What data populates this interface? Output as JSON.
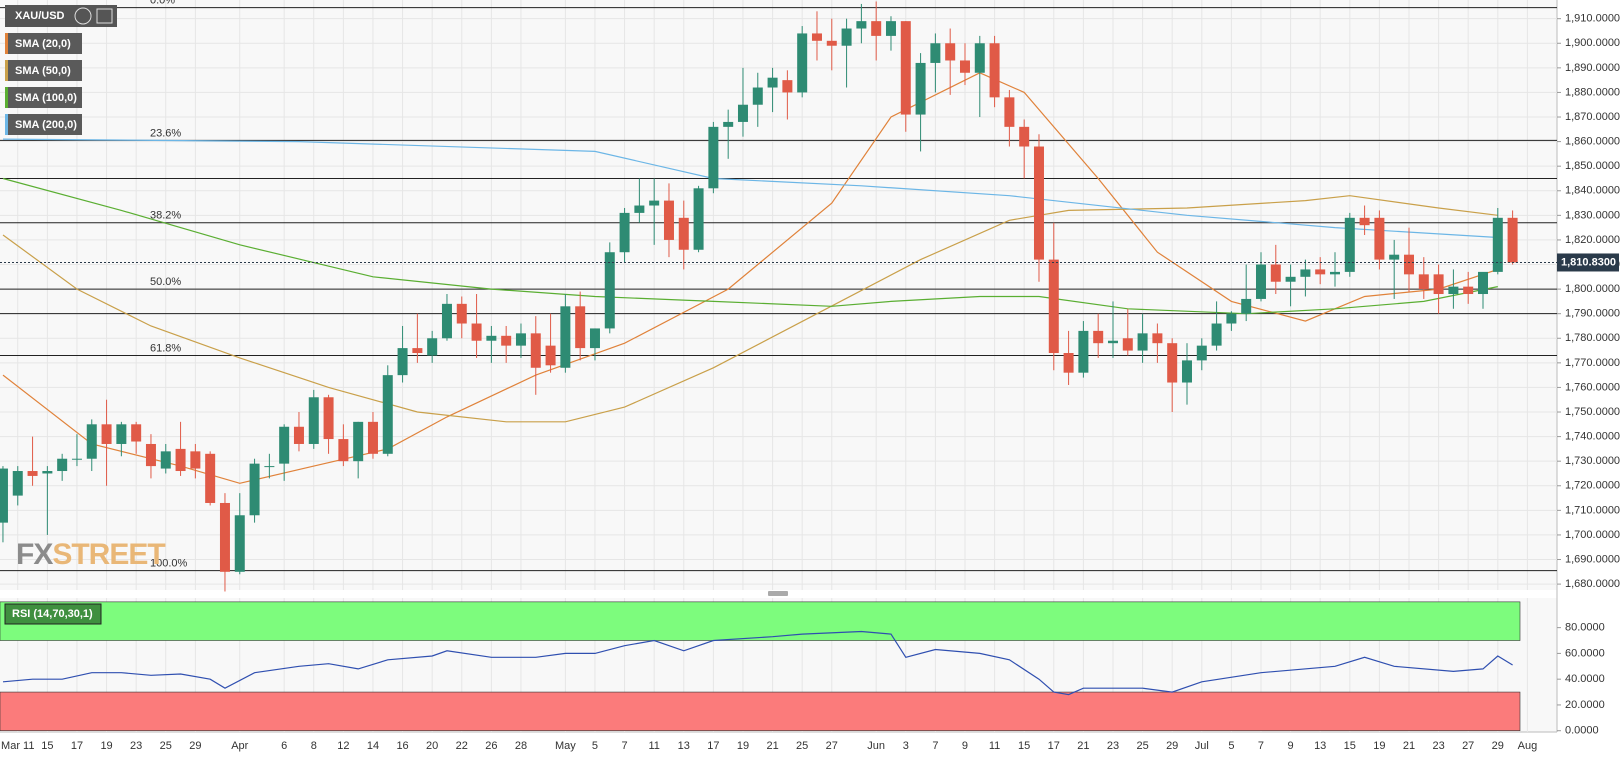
{
  "chart_data": [
    {
      "type": "candlestick",
      "symbol": "XAU/USD",
      "up_color": "#2e8b73",
      "down_color": "#e05a47",
      "open": [
        1705,
        1716,
        1726,
        1725,
        1726,
        1731,
        1731,
        1745,
        1737,
        1745,
        1737,
        1727,
        1735,
        1734,
        1733,
        1713,
        1685,
        1708,
        1728,
        1729,
        1744,
        1737,
        1756,
        1739,
        1730,
        1746,
        1733,
        1765,
        1776,
        1773,
        1780,
        1794,
        1786,
        1779,
        1781,
        1777,
        1782,
        1777,
        1768,
        1793,
        1776,
        1784,
        1815,
        1831,
        1834,
        1836,
        1829,
        1816,
        1841,
        1866,
        1868,
        1875,
        1882,
        1885,
        1880,
        1904,
        1901,
        1899,
        1906,
        1909,
        1903,
        1909,
        1871,
        1892,
        1900,
        1893,
        1888,
        1900,
        1878,
        1866,
        1858,
        1812,
        1774,
        1766,
        1783,
        1778,
        1780,
        1775,
        1782,
        1778,
        1762,
        1771,
        1777,
        1786,
        1790,
        1796,
        1810,
        1803,
        1805,
        1808,
        1806,
        1807,
        1829,
        1829,
        1812,
        1814,
        1806,
        1806,
        1798,
        1801,
        1798,
        1807,
        1829
      ],
      "high": [
        1728,
        1728,
        1740,
        1728,
        1733,
        1741,
        1747,
        1755,
        1746,
        1746,
        1741,
        1737,
        1746,
        1737,
        1734,
        1717,
        1717,
        1731,
        1733,
        1745,
        1750,
        1759,
        1757,
        1745,
        1746,
        1750,
        1769,
        1785,
        1790,
        1783,
        1798,
        1797,
        1798,
        1785,
        1785,
        1786,
        1789,
        1790,
        1798,
        1799,
        1784,
        1819,
        1833,
        1845,
        1845,
        1843,
        1836,
        1842,
        1868,
        1873,
        1890,
        1888,
        1890,
        1889,
        1907,
        1913,
        1910,
        1910,
        1916,
        1917,
        1911,
        1909,
        1896,
        1904,
        1906,
        1900,
        1903,
        1903,
        1881,
        1869,
        1863,
        1827,
        1783,
        1787,
        1790,
        1795,
        1792,
        1790,
        1786,
        1780,
        1778,
        1780,
        1795,
        1791,
        1810,
        1815,
        1818,
        1810,
        1812,
        1813,
        1815,
        1831,
        1834,
        1832,
        1820,
        1825,
        1813,
        1810,
        1808,
        1807,
        1805,
        1833,
        1832
      ],
      "low": [
        1697,
        1712,
        1720,
        1700,
        1722,
        1728,
        1726,
        1720,
        1732,
        1733,
        1723,
        1725,
        1724,
        1723,
        1712,
        1677,
        1684,
        1705,
        1723,
        1722,
        1734,
        1735,
        1733,
        1728,
        1723,
        1731,
        1732,
        1762,
        1770,
        1770,
        1779,
        1780,
        1772,
        1770,
        1770,
        1772,
        1757,
        1766,
        1766,
        1771,
        1771,
        1782,
        1811,
        1827,
        1818,
        1813,
        1808,
        1815,
        1839,
        1853,
        1862,
        1866,
        1872,
        1869,
        1878,
        1893,
        1889,
        1882,
        1900,
        1893,
        1897,
        1864,
        1856,
        1880,
        1879,
        1883,
        1870,
        1874,
        1858,
        1845,
        1803,
        1767,
        1761,
        1764,
        1772,
        1772,
        1773,
        1770,
        1770,
        1750,
        1753,
        1767,
        1775,
        1783,
        1787,
        1795,
        1798,
        1793,
        1797,
        1802,
        1801,
        1805,
        1822,
        1808,
        1796,
        1799,
        1796,
        1790,
        1792,
        1794,
        1792,
        1806,
        1810
      ],
      "close": [
        1727,
        1726,
        1724,
        1726,
        1731,
        1731,
        1745,
        1737,
        1745,
        1738,
        1728,
        1734,
        1726,
        1727,
        1713,
        1685,
        1708,
        1729,
        1728,
        1744,
        1737,
        1756,
        1739,
        1730,
        1746,
        1733,
        1765,
        1776,
        1774,
        1780,
        1794,
        1786,
        1779,
        1781,
        1777,
        1782,
        1768,
        1769,
        1793,
        1776,
        1784,
        1815,
        1831,
        1834,
        1836,
        1820,
        1816,
        1841,
        1866,
        1868,
        1875,
        1882,
        1886,
        1880,
        1904,
        1901,
        1899,
        1906,
        1909,
        1903,
        1909,
        1871,
        1892,
        1900,
        1893,
        1888,
        1900,
        1878,
        1866,
        1858,
        1812,
        1774,
        1766,
        1783,
        1778,
        1779,
        1775,
        1782,
        1778,
        1762,
        1771,
        1777,
        1786,
        1790,
        1796,
        1810,
        1803,
        1805,
        1808,
        1806,
        1807,
        1829,
        1826,
        1812,
        1814,
        1806,
        1800,
        1798,
        1801,
        1798,
        1807,
        1829,
        1810.83
      ],
      "series": [
        {
          "name": "SMA (20,0)",
          "color": "#e0823a",
          "x": [
            0,
            6,
            12,
            16,
            21,
            26,
            30,
            36,
            42,
            49,
            56,
            60,
            66,
            69,
            74,
            78,
            83,
            88,
            92,
            97,
            101
          ],
          "values": [
            1765,
            1737,
            1728,
            1721,
            1728,
            1735,
            1748,
            1765,
            1778,
            1800,
            1835,
            1870,
            1888,
            1880,
            1845,
            1815,
            1795,
            1787,
            1797,
            1800,
            1808
          ]
        },
        {
          "name": "SMA (50,0)",
          "color": "#c9a04a",
          "x": [
            0,
            5,
            10,
            16,
            22,
            28,
            34,
            38,
            42,
            48,
            55,
            62,
            68,
            72,
            80,
            88,
            91,
            97,
            101
          ],
          "values": [
            1822,
            1800,
            1785,
            1772,
            1760,
            1750,
            1746,
            1746,
            1752,
            1768,
            1790,
            1812,
            1828,
            1832,
            1833,
            1836,
            1838,
            1833,
            1830
          ]
        },
        {
          "name": "SMA (100,0)",
          "color": "#5aae32",
          "x": [
            0,
            8,
            16,
            25,
            33,
            40,
            48,
            56,
            60,
            66,
            70,
            76,
            84,
            90,
            96,
            101
          ],
          "values": [
            1845,
            1832,
            1818,
            1805,
            1800,
            1797,
            1795,
            1793,
            1795,
            1797,
            1797,
            1792,
            1790,
            1792,
            1795,
            1801
          ]
        },
        {
          "name": "SMA (200,0)",
          "color": "#6cb6e6",
          "x": [
            0,
            20,
            40,
            48,
            58,
            68,
            80,
            90,
            101
          ],
          "values": [
            1861,
            1860,
            1856,
            1845,
            1842,
            1838,
            1830,
            1825,
            1821
          ]
        }
      ],
      "levels": [
        {
          "value": 1914.5,
          "label": "0.0%"
        },
        {
          "value": 1860.5,
          "label": "23.6%"
        },
        {
          "value": 1827,
          "label": "38.2%"
        },
        {
          "value": 1800,
          "label": "50.0%"
        },
        {
          "value": 1773,
          "label": "61.8%"
        },
        {
          "value": 1685.5,
          "label": "100.0%"
        }
      ],
      "lines": [
        1845,
        1790
      ],
      "price_line": {
        "value": 1810.83,
        "label": "1,810.8300"
      },
      "watermark": [
        "FX",
        "STREET"
      ],
      "xlim": [
        -0.2,
        105
      ],
      "xticks": [
        {
          "value": 1,
          "label": "Mar 11"
        },
        {
          "value": 3,
          "label": "15"
        },
        {
          "value": 5,
          "label": "17"
        },
        {
          "value": 7,
          "label": "19"
        },
        {
          "value": 9,
          "label": "23"
        },
        {
          "value": 11,
          "label": "25"
        },
        {
          "value": 13,
          "label": "29"
        },
        {
          "value": 16,
          "label": "Apr"
        },
        {
          "value": 19,
          "label": "6"
        },
        {
          "value": 21,
          "label": "8"
        },
        {
          "value": 23,
          "label": "12"
        },
        {
          "value": 25,
          "label": "14"
        },
        {
          "value": 27,
          "label": "16"
        },
        {
          "value": 29,
          "label": "20"
        },
        {
          "value": 31,
          "label": "22"
        },
        {
          "value": 33,
          "label": "26"
        },
        {
          "value": 35,
          "label": "28"
        },
        {
          "value": 38,
          "label": "May"
        },
        {
          "value": 40,
          "label": "5"
        },
        {
          "value": 42,
          "label": "7"
        },
        {
          "value": 44,
          "label": "11"
        },
        {
          "value": 46,
          "label": "13"
        },
        {
          "value": 48,
          "label": "17"
        },
        {
          "value": 50,
          "label": "19"
        },
        {
          "value": 52,
          "label": "21"
        },
        {
          "value": 54,
          "label": "25"
        },
        {
          "value": 56,
          "label": "27"
        },
        {
          "value": 59,
          "label": "Jun"
        },
        {
          "value": 61,
          "label": "3"
        },
        {
          "value": 63,
          "label": "7"
        },
        {
          "value": 65,
          "label": "9"
        },
        {
          "value": 67,
          "label": "11"
        },
        {
          "value": 69,
          "label": "15"
        },
        {
          "value": 71,
          "label": "17"
        },
        {
          "value": 73,
          "label": "21"
        },
        {
          "value": 75,
          "label": "23"
        },
        {
          "value": 77,
          "label": "25"
        },
        {
          "value": 79,
          "label": "29"
        },
        {
          "value": 81,
          "label": "Jul"
        },
        {
          "value": 83,
          "label": "5"
        },
        {
          "value": 85,
          "label": "7"
        },
        {
          "value": 87,
          "label": "9"
        },
        {
          "value": 89,
          "label": "13"
        },
        {
          "value": 91,
          "label": "15"
        },
        {
          "value": 93,
          "label": "19"
        },
        {
          "value": 95,
          "label": "21"
        },
        {
          "value": 97,
          "label": "23"
        },
        {
          "value": 99,
          "label": "27"
        },
        {
          "value": 101,
          "label": "29"
        },
        {
          "value": 103,
          "label": "Aug"
        }
      ],
      "ylim": [
        1677.6,
        1917.6
      ],
      "yticks": [
        {
          "value": 1680,
          "label": "1,680.0000"
        },
        {
          "value": 1690,
          "label": "1,690.0000"
        },
        {
          "value": 1700,
          "label": "1,700.0000"
        },
        {
          "value": 1710,
          "label": "1,710.0000"
        },
        {
          "value": 1720,
          "label": "1,720.0000"
        },
        {
          "value": 1730,
          "label": "1,730.0000"
        },
        {
          "value": 1740,
          "label": "1,740.0000"
        },
        {
          "value": 1750,
          "label": "1,750.0000"
        },
        {
          "value": 1760,
          "label": "1,760.0000"
        },
        {
          "value": 1770,
          "label": "1,770.0000"
        },
        {
          "value": 1780,
          "label": "1,780.0000"
        },
        {
          "value": 1790,
          "label": "1,790.0000"
        },
        {
          "value": 1800,
          "label": "1,800.0000"
        },
        {
          "value": 1810,
          "label": "1,810.0000"
        },
        {
          "value": 1820,
          "label": "1,820.0000"
        },
        {
          "value": 1830,
          "label": "1,830.0000"
        },
        {
          "value": 1840,
          "label": "1,840.0000"
        },
        {
          "value": 1850,
          "label": "1,850.0000"
        },
        {
          "value": 1860,
          "label": "1,860.0000"
        },
        {
          "value": 1870,
          "label": "1,870.0000"
        },
        {
          "value": 1880,
          "label": "1,880.0000"
        },
        {
          "value": 1890,
          "label": "1,890.0000"
        },
        {
          "value": 1900,
          "label": "1,900.0000"
        },
        {
          "value": 1910,
          "label": "1,910.0000"
        }
      ],
      "grid": true
    },
    {
      "type": "line",
      "title": "RSI (14,70,30,1)",
      "series": [
        {
          "color": "#2f4fb0",
          "x": [
            0,
            2,
            4,
            6,
            8,
            10,
            12,
            14,
            15,
            17,
            20,
            22,
            24,
            26,
            29,
            30,
            33,
            36,
            38,
            40,
            42,
            44,
            46,
            48,
            52,
            54,
            58,
            60,
            61,
            63,
            66,
            68,
            70,
            71,
            72,
            73,
            77,
            79,
            81,
            85,
            90,
            92,
            94,
            98,
            100,
            101,
            102
          ],
          "values": [
            38,
            40,
            40,
            45,
            45,
            43,
            44,
            40,
            33,
            45,
            50,
            52,
            48,
            55,
            58,
            62,
            57,
            57,
            60,
            60,
            66,
            70,
            62,
            70,
            73,
            75,
            77,
            75,
            57,
            63,
            60,
            55,
            40,
            30,
            28,
            33,
            33,
            30,
            38,
            45,
            50,
            57,
            50,
            46,
            48,
            58,
            51
          ]
        }
      ],
      "bands": [
        {
          "from": 70,
          "to": 100,
          "color": "#7dfc7d"
        },
        {
          "from": 0,
          "to": 30,
          "color": "#fb7b7b"
        }
      ],
      "ylim": [
        -1,
        103
      ],
      "yticks": [
        {
          "value": 0,
          "label": "0.0000"
        },
        {
          "value": 20,
          "label": "20.0000"
        },
        {
          "value": 40,
          "label": "40.0000"
        },
        {
          "value": 60,
          "label": "60.0000"
        },
        {
          "value": 80,
          "label": "80.0000"
        }
      ]
    }
  ]
}
